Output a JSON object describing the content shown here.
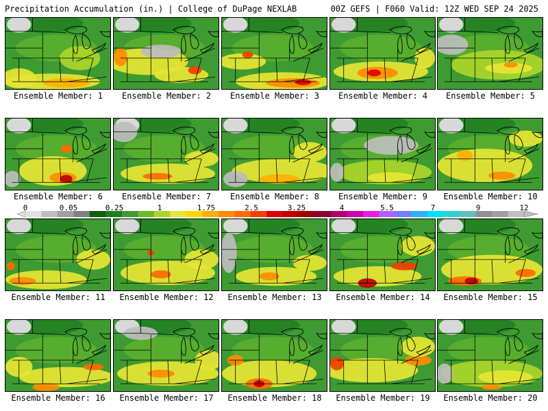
{
  "header": {
    "title_left": "Precipitation Accumulation (in.) | College of DuPage NEXLAB",
    "title_right": "00Z GEFS | F060 Valid: 12Z WED SEP 24 2025"
  },
  "colorbar": {
    "labels": [
      "0",
      "0.05",
      "0.25",
      "1",
      "1.75",
      "2.5",
      "3.25",
      "4",
      "5.5",
      "7",
      "9",
      "12"
    ],
    "colors": [
      "#e2e2e2",
      "#bdbdbd",
      "#9e9e9e",
      "#7f7f7f",
      "#0e5e0e",
      "#1f7d1f",
      "#3e9b32",
      "#6cbc2a",
      "#a9d629",
      "#e6e633",
      "#ffd700",
      "#ffb000",
      "#ff8c00",
      "#ff6a00",
      "#f04000",
      "#e00000",
      "#c00000",
      "#a00000",
      "#8a0030",
      "#b0006c",
      "#d000b0",
      "#e020e0",
      "#b060ff",
      "#7080ff",
      "#30b0ff",
      "#00e0ff",
      "#30d0d0",
      "#60c0c0",
      "#909090",
      "#a0a0a0",
      "#c0c0c0"
    ]
  },
  "members": [
    {
      "label": "Ensemble Member: 1",
      "blobs": [
        [
          "#e6e633",
          70,
          95,
          70,
          12
        ],
        [
          "#ffb000",
          90,
          97,
          35,
          7
        ],
        [
          "#e6e633",
          20,
          90,
          25,
          15
        ],
        [
          "#a9d629",
          110,
          60,
          30,
          18
        ]
      ]
    },
    {
      "label": "Ensemble Member: 2",
      "blobs": [
        [
          "#e6e633",
          50,
          65,
          60,
          20
        ],
        [
          "#ff8c00",
          10,
          58,
          10,
          14
        ],
        [
          "#e6e633",
          100,
          85,
          40,
          12
        ],
        [
          "#f04000",
          120,
          78,
          10,
          6
        ],
        [
          "#bdbdbd",
          70,
          50,
          30,
          10
        ]
      ]
    },
    {
      "label": "Ensemble Member: 3",
      "blobs": [
        [
          "#e6e633",
          90,
          95,
          70,
          14
        ],
        [
          "#ff8c00",
          105,
          97,
          40,
          7
        ],
        [
          "#e00000",
          120,
          96,
          12,
          4
        ],
        [
          "#e6e633",
          30,
          65,
          35,
          12
        ],
        [
          "#f04000",
          38,
          55,
          8,
          5
        ]
      ]
    },
    {
      "label": "Ensemble Member: 4",
      "blobs": [
        [
          "#e6e633",
          75,
          80,
          70,
          15
        ],
        [
          "#ff8c00",
          70,
          82,
          30,
          9
        ],
        [
          "#e00000",
          65,
          82,
          10,
          5
        ],
        [
          "#e6e633",
          140,
          60,
          15,
          15
        ]
      ]
    },
    {
      "label": "Ensemble Member: 5",
      "blobs": [
        [
          "#a9d629",
          90,
          70,
          70,
          22
        ],
        [
          "#e6e633",
          105,
          75,
          35,
          8
        ],
        [
          "#ff8c00",
          108,
          70,
          10,
          4
        ],
        [
          "#bdbdbd",
          20,
          40,
          25,
          15
        ]
      ]
    },
    {
      "label": "Ensemble Member: 6",
      "blobs": [
        [
          "#e6e633",
          70,
          78,
          50,
          22
        ],
        [
          "#ff8c00",
          85,
          88,
          20,
          8
        ],
        [
          "#c00000",
          90,
          90,
          9,
          6
        ],
        [
          "#ff6a00",
          90,
          45,
          8,
          6
        ],
        [
          "#bdbdbd",
          10,
          90,
          12,
          12
        ]
      ]
    },
    {
      "label": "Ensemble Member: 7",
      "blobs": [
        [
          "#e6e633",
          80,
          82,
          70,
          15
        ],
        [
          "#ff6a00",
          65,
          86,
          22,
          5
        ],
        [
          "#e6e633",
          130,
          60,
          25,
          12
        ],
        [
          "#bdbdbd",
          15,
          20,
          20,
          15
        ]
      ]
    },
    {
      "label": "Ensemble Member: 8",
      "blobs": [
        [
          "#e6e633",
          90,
          78,
          75,
          18
        ],
        [
          "#ffb000",
          85,
          90,
          30,
          7
        ],
        [
          "#e6e633",
          130,
          50,
          25,
          15
        ],
        [
          "#bdbdbd",
          20,
          90,
          18,
          12
        ]
      ]
    },
    {
      "label": "Ensemble Member: 9",
      "blobs": [
        [
          "#a9d629",
          80,
          80,
          70,
          18
        ],
        [
          "#e6e633",
          90,
          88,
          35,
          8
        ],
        [
          "#bdbdbd",
          90,
          40,
          40,
          14
        ],
        [
          "#bdbdbd",
          10,
          80,
          10,
          14
        ]
      ]
    },
    {
      "label": "Ensemble Member: 10",
      "blobs": [
        [
          "#e6e633",
          70,
          70,
          70,
          25
        ],
        [
          "#ff8c00",
          95,
          85,
          20,
          6
        ],
        [
          "#e6e633",
          130,
          30,
          25,
          12
        ],
        [
          "#ffb000",
          40,
          55,
          12,
          8
        ]
      ]
    },
    {
      "label": "Ensemble Member: 11",
      "blobs": [
        [
          "#e6e633",
          60,
          90,
          60,
          14
        ],
        [
          "#ff8c00",
          25,
          92,
          20,
          6
        ],
        [
          "#ff6a00",
          8,
          70,
          6,
          6
        ],
        [
          "#e6e633",
          130,
          60,
          25,
          15
        ]
      ]
    },
    {
      "label": "Ensemble Member: 12",
      "blobs": [
        [
          "#e6e633",
          80,
          80,
          70,
          18
        ],
        [
          "#ff6a00",
          70,
          82,
          15,
          6
        ],
        [
          "#f04000",
          55,
          50,
          5,
          4
        ],
        [
          "#e6e633",
          130,
          60,
          25,
          15
        ]
      ]
    },
    {
      "label": "Ensemble Member: 13",
      "blobs": [
        [
          "#e6e633",
          80,
          85,
          60,
          14
        ],
        [
          "#ff8c00",
          70,
          85,
          15,
          6
        ],
        [
          "#e6e633",
          130,
          65,
          25,
          12
        ],
        [
          "#bdbdbd",
          10,
          50,
          12,
          30
        ]
      ]
    },
    {
      "label": "Ensemble Member: 14",
      "blobs": [
        [
          "#e6e633",
          70,
          85,
          65,
          15
        ],
        [
          "#c00000",
          55,
          95,
          14,
          7
        ],
        [
          "#f04000",
          110,
          70,
          20,
          6
        ],
        [
          "#e6e633",
          130,
          40,
          25,
          15
        ]
      ]
    },
    {
      "label": "Ensemble Member: 15",
      "blobs": [
        [
          "#e6e633",
          80,
          75,
          75,
          22
        ],
        [
          "#ff6a00",
          40,
          92,
          25,
          7
        ],
        [
          "#c00000",
          50,
          92,
          10,
          5
        ],
        [
          "#ff6a00",
          130,
          80,
          15,
          6
        ]
      ]
    },
    {
      "label": "Ensemble Member: 16",
      "blobs": [
        [
          "#e6e633",
          90,
          85,
          70,
          15
        ],
        [
          "#ff8c00",
          60,
          100,
          20,
          6
        ],
        [
          "#ff6a00",
          130,
          70,
          15,
          5
        ],
        [
          "#e6e633",
          20,
          70,
          20,
          15
        ]
      ]
    },
    {
      "label": "Ensemble Member: 17",
      "blobs": [
        [
          "#e6e633",
          80,
          80,
          75,
          18
        ],
        [
          "#ff8c00",
          70,
          80,
          20,
          6
        ],
        [
          "#e6e633",
          140,
          60,
          20,
          15
        ],
        [
          "#bdbdbd",
          40,
          20,
          25,
          10
        ]
      ]
    },
    {
      "label": "Ensemble Member: 18",
      "blobs": [
        [
          "#e6e633",
          70,
          80,
          70,
          20
        ],
        [
          "#ff6a00",
          55,
          95,
          20,
          8
        ],
        [
          "#c00000",
          55,
          95,
          8,
          5
        ],
        [
          "#ff8c00",
          20,
          60,
          12,
          8
        ]
      ]
    },
    {
      "label": "Ensemble Member: 19",
      "blobs": [
        [
          "#e6e633",
          60,
          75,
          70,
          18
        ],
        [
          "#f04000",
          10,
          65,
          10,
          10
        ],
        [
          "#ff8c00",
          130,
          60,
          20,
          8
        ],
        [
          "#e6e633",
          130,
          40,
          25,
          15
        ]
      ]
    },
    {
      "label": "Ensemble Member: 20",
      "blobs": [
        [
          "#a9d629",
          80,
          80,
          75,
          20
        ],
        [
          "#e6e633",
          100,
          85,
          40,
          10
        ],
        [
          "#ff8c00",
          80,
          100,
          15,
          4
        ],
        [
          "#bdbdbd",
          10,
          80,
          12,
          15
        ]
      ]
    }
  ]
}
